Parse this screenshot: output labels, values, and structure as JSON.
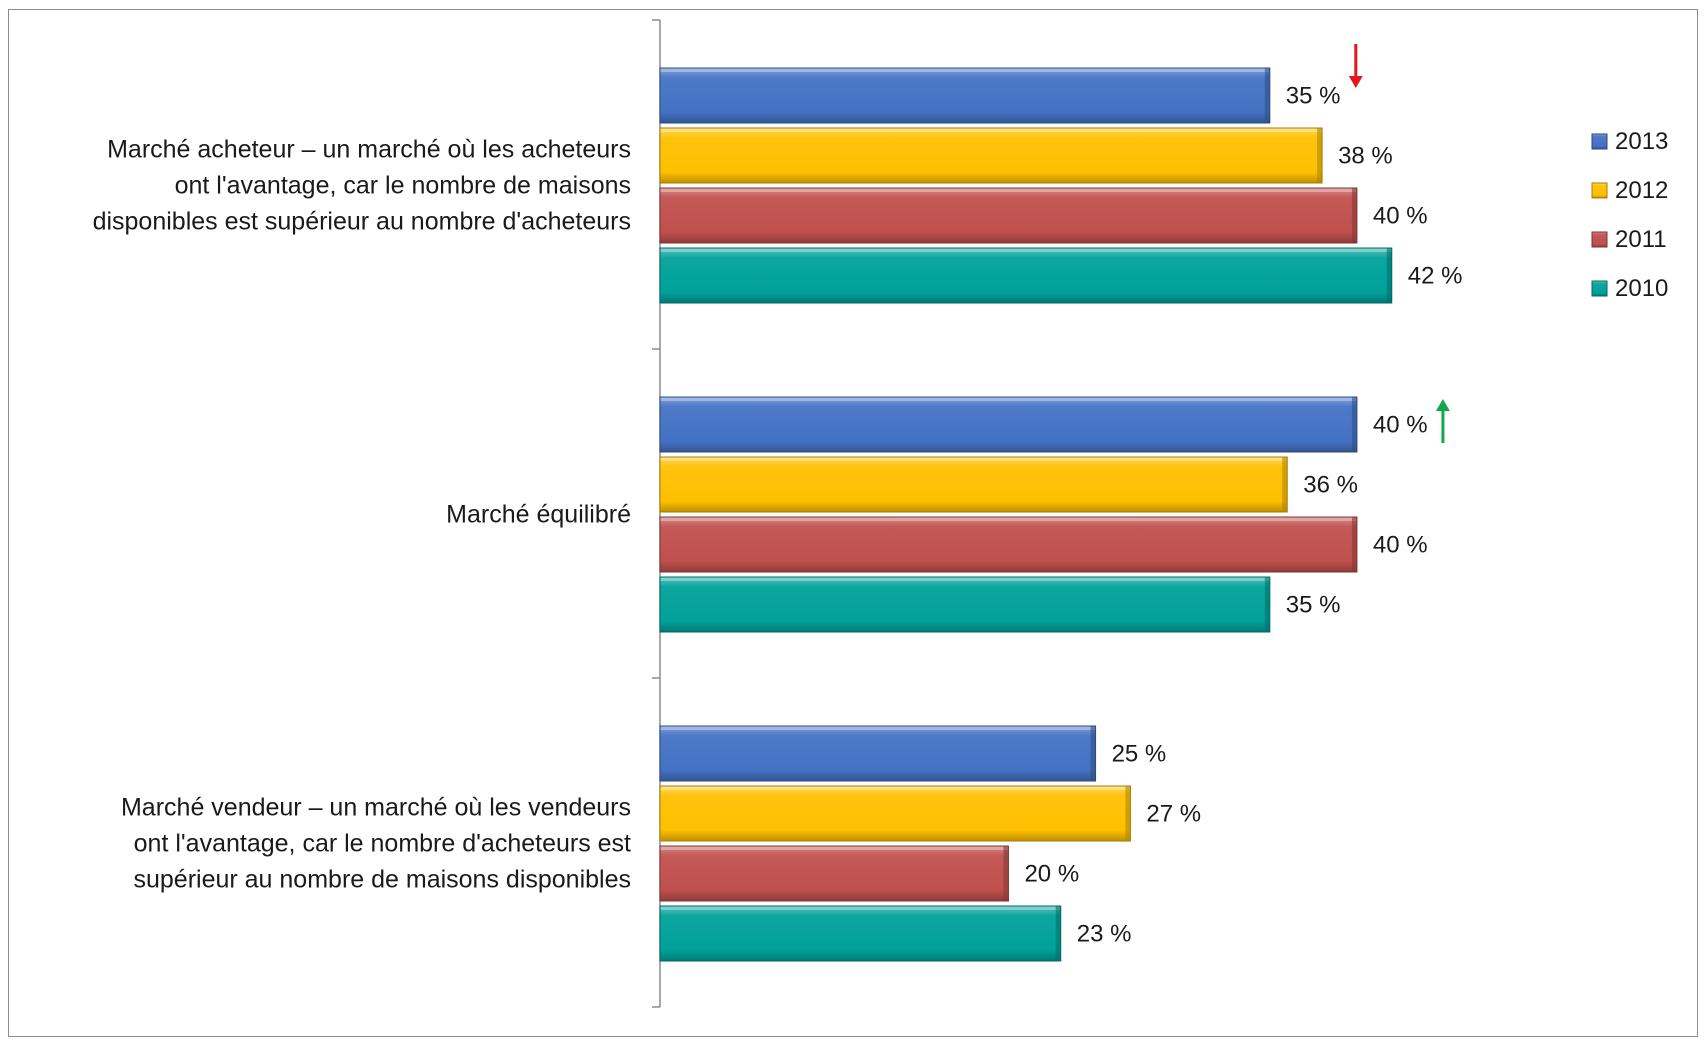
{
  "chart_data": {
    "type": "bar",
    "orientation": "horizontal",
    "title": "",
    "xlabel": "",
    "ylabel": "",
    "xlim": [
      0,
      52
    ],
    "grid": false,
    "legend_position": "right",
    "value_suffix": " %",
    "categories": [
      [
        "Marché acheteur – un marché où les acheteurs",
        "ont l'avantage, car le nombre de maisons",
        "disponibles est supérieur au nombre d'acheteurs"
      ],
      [
        "Marché équilibré"
      ],
      [
        "Marché vendeur – un marché où les vendeurs",
        "ont l'avantage, car le nombre d'acheteurs est",
        "supérieur au nombre de maisons disponibles"
      ]
    ],
    "series": [
      {
        "name": "2013",
        "color": "#4472c4",
        "values": [
          35,
          40,
          25
        ]
      },
      {
        "name": "2012",
        "color": "#ffc000",
        "values": [
          38,
          36,
          27
        ]
      },
      {
        "name": "2011",
        "color": "#c0504d",
        "values": [
          40,
          40,
          20
        ]
      },
      {
        "name": "2010",
        "color": "#00a19a",
        "values": [
          42,
          35,
          23
        ]
      }
    ],
    "data_labels": [
      [
        "35 %",
        "40 %",
        "25 %"
      ],
      [
        "38 %",
        "36 %",
        "27 %"
      ],
      [
        "40 %",
        "40 %",
        "20 %"
      ],
      [
        "42 %",
        "35 %",
        "23 %"
      ]
    ],
    "annotations": [
      {
        "type": "arrow",
        "direction": "down",
        "color": "#e8141c",
        "category_index": 0,
        "series_index": 0
      },
      {
        "type": "arrow",
        "direction": "up",
        "color": "#12a84a",
        "category_index": 1,
        "series_index": 0
      }
    ]
  }
}
